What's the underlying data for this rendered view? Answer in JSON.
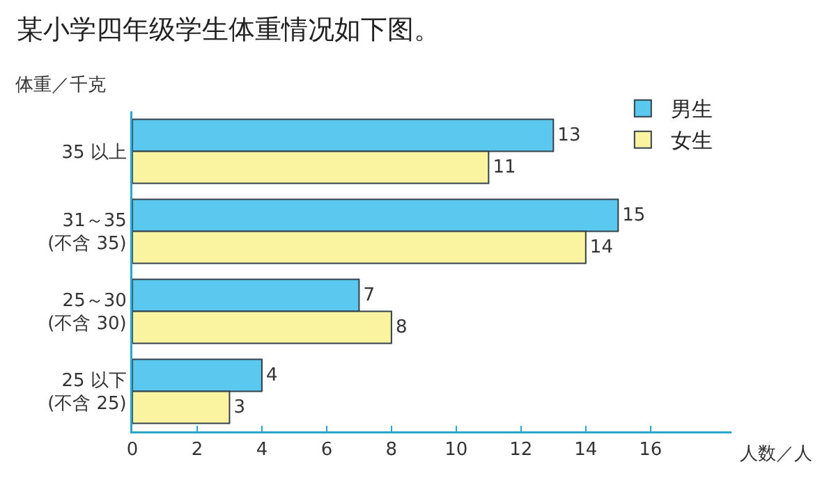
{
  "chart_data": {
    "type": "bar",
    "orientation": "horizontal",
    "title": "某小学四年级学生体重情况如下图。",
    "ylabel": "体重／千克",
    "xlabel": "人数／人",
    "categories": [
      "35 以上",
      "31～35\n(不含 35)",
      "25～30\n(不含 30)",
      "25 以下\n(不含 25)"
    ],
    "series": [
      {
        "name": "男生",
        "color": "#5bc8f0",
        "values": [
          13,
          15,
          7,
          4
        ]
      },
      {
        "name": "女生",
        "color": "#faf3a0",
        "values": [
          11,
          14,
          8,
          3
        ]
      }
    ],
    "xlim": [
      0,
      18.5
    ],
    "xticks": [
      0,
      2,
      4,
      6,
      8,
      10,
      12,
      14,
      16
    ],
    "data_labels": true,
    "grid": false,
    "legend": "top right"
  }
}
